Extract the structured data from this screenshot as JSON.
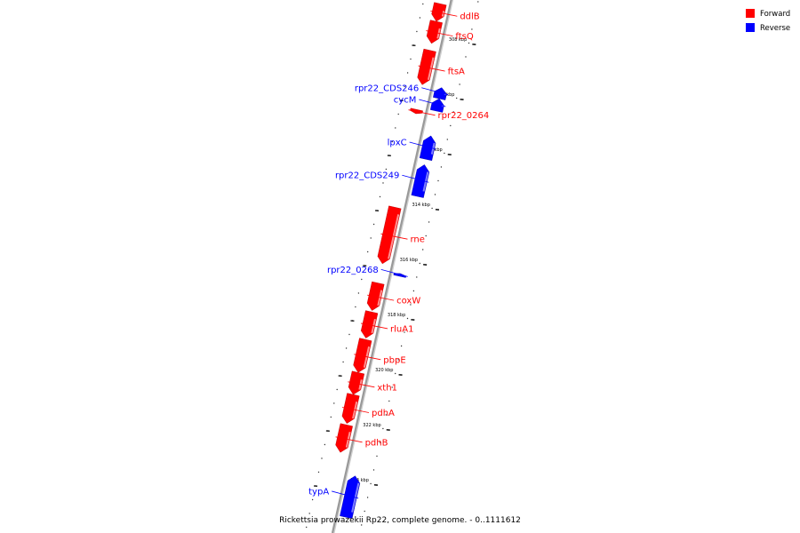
{
  "caption": "Rickettsia prowazekii Rp22, complete genome. - 0..1111612",
  "legend": [
    {
      "label": "Forward",
      "color": "#ff0000"
    },
    {
      "label": "Reverse",
      "color": "#0000ff"
    }
  ],
  "colors": {
    "forward": "#ff0000",
    "reverse": "#0000ff",
    "backbone": "#999999"
  },
  "ticks": [
    {
      "kbp": 308,
      "label": "308 kbp"
    },
    {
      "kbp": 310,
      "label": "310 kbp"
    },
    {
      "kbp": 312,
      "label": "312 kbp"
    },
    {
      "kbp": 314,
      "label": "314 kbp"
    },
    {
      "kbp": 316,
      "label": "316 kbp"
    },
    {
      "kbp": 318,
      "label": "318 kbp"
    },
    {
      "kbp": 320,
      "label": "320 kbp"
    },
    {
      "kbp": 322,
      "label": "322 kbp"
    },
    {
      "kbp": 324,
      "label": "324 kbp"
    }
  ],
  "genes": [
    {
      "name": "ddlB",
      "strand": "forward",
      "start_kbp": 306.86,
      "end_kbp": 307.5
    },
    {
      "name": "ftsQ",
      "strand": "forward",
      "start_kbp": 307.5,
      "end_kbp": 308.3
    },
    {
      "name": "ftsA",
      "strand": "forward",
      "start_kbp": 308.55,
      "end_kbp": 309.8
    },
    {
      "name": "rpr22_CDS246",
      "strand": "reverse",
      "start_kbp": 309.75,
      "end_kbp": 310.15
    },
    {
      "name": "cycM",
      "strand": "reverse",
      "start_kbp": 310.15,
      "end_kbp": 310.6
    },
    {
      "name": "rpr22_0264",
      "strand": "forward",
      "start_kbp": 310.7,
      "end_kbp": 310.85
    },
    {
      "name": "lpxC",
      "strand": "reverse",
      "start_kbp": 311.5,
      "end_kbp": 312.35
    },
    {
      "name": "rpr22_CDS249",
      "strand": "reverse",
      "start_kbp": 312.55,
      "end_kbp": 313.7
    },
    {
      "name": "rne",
      "strand": "forward",
      "start_kbp": 314.25,
      "end_kbp": 316.3
    },
    {
      "name": "rpr22_0268",
      "strand": "reverse",
      "start_kbp": 316.5,
      "end_kbp": 316.6
    },
    {
      "name": "coxW",
      "strand": "forward",
      "start_kbp": 317.0,
      "end_kbp": 318.0
    },
    {
      "name": "rluA1",
      "strand": "forward",
      "start_kbp": 318.05,
      "end_kbp": 319.0
    },
    {
      "name": "pbpE",
      "strand": "forward",
      "start_kbp": 319.05,
      "end_kbp": 320.25
    },
    {
      "name": "xth1",
      "strand": "forward",
      "start_kbp": 320.25,
      "end_kbp": 321.05
    },
    {
      "name": "pdhA",
      "strand": "forward",
      "start_kbp": 321.05,
      "end_kbp": 322.1
    },
    {
      "name": "pdhB",
      "strand": "forward",
      "start_kbp": 322.15,
      "end_kbp": 323.15
    },
    {
      "name": "typA",
      "strand": "reverse",
      "start_kbp": 323.85,
      "end_kbp": 325.35
    }
  ]
}
